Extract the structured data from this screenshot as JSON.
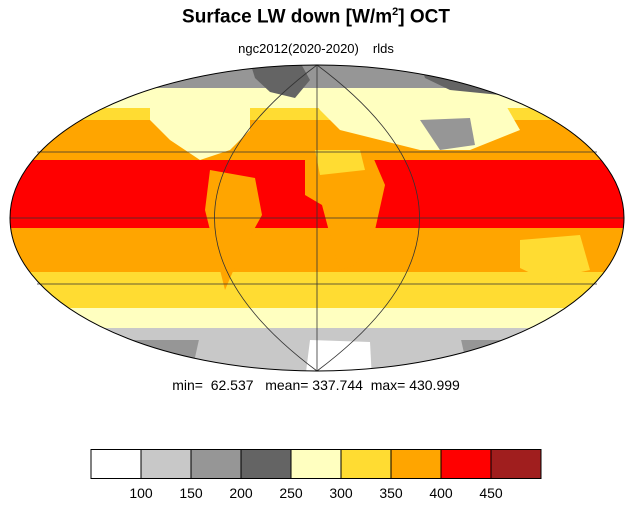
{
  "title": {
    "text": "Surface LW down [W/m",
    "superscript": "2",
    "suffix": "]  OCT"
  },
  "subtitle": {
    "experiment": "ngc2012(2020-2020)",
    "variable": "rlds"
  },
  "stats": {
    "min_label": "min=",
    "min": "62.537",
    "mean_label": "mean=",
    "mean": "337.744",
    "max_label": "max=",
    "max": "430.999"
  },
  "map": {
    "projection": "mollweide",
    "gridlines": true,
    "coastlines": true
  },
  "colorbar": {
    "colors": [
      "#ffffff",
      "#c8c8c8",
      "#969696",
      "#646464",
      "#ffffc0",
      "#ffdc32",
      "#ffa500",
      "#ff0000",
      "#a01e1e"
    ],
    "ticks": [
      "100",
      "150",
      "200",
      "250",
      "300",
      "350",
      "400",
      "450"
    ]
  },
  "legend_colors": {
    "land_ice": "#ffffff",
    "polar_dark": "#646464",
    "subtropics": "#ffdc32",
    "warm": "#ffa500",
    "tropics": "#ff0000",
    "midlat": "#ffffc0"
  }
}
